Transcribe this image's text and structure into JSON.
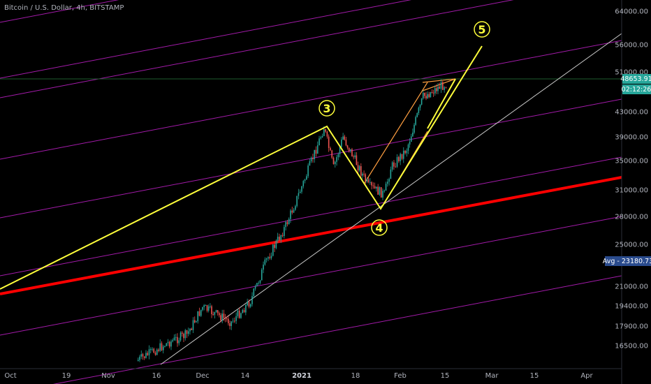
{
  "chart_data": {
    "type": "candlestick",
    "title": "Bitcoin / U.S. Dollar, 4h, BITSTAMP",
    "y_ticks": [
      "64000.00",
      "56000.00",
      "51000.00",
      "43000.00",
      "39000.00",
      "35000.00",
      "31000.00",
      "28000.00",
      "25000.00",
      "21000.00",
      "19400.00",
      "17900.00",
      "16500.00"
    ],
    "x_ticks": [
      {
        "label": "Oct",
        "bold": false
      },
      {
        "label": "19",
        "bold": false
      },
      {
        "label": "Nov",
        "bold": false
      },
      {
        "label": "16",
        "bold": false
      },
      {
        "label": "Dec",
        "bold": false
      },
      {
        "label": "14",
        "bold": false
      },
      {
        "label": "2021",
        "bold": true
      },
      {
        "label": "18",
        "bold": false
      },
      {
        "label": "Feb",
        "bold": false
      },
      {
        "label": "15",
        "bold": false
      },
      {
        "label": "Mar",
        "bold": false
      },
      {
        "label": "15",
        "bold": false
      },
      {
        "label": "Apr",
        "bold": false
      }
    ],
    "price_label": {
      "value": "48653.91",
      "countdown": "02:12:26",
      "color": "#26a69a"
    },
    "avg_label": {
      "text": "Avg - 23180.73",
      "color": "#2a4b8d"
    },
    "price_path": [
      {
        "date": "2020-11-10",
        "price": 15400
      },
      {
        "date": "2020-11-20",
        "price": 16700
      },
      {
        "date": "2020-11-26",
        "price": 17300
      },
      {
        "date": "2020-12-01",
        "price": 19300
      },
      {
        "date": "2020-12-10",
        "price": 18200
      },
      {
        "date": "2020-12-16",
        "price": 19800
      },
      {
        "date": "2020-12-21",
        "price": 23500
      },
      {
        "date": "2020-12-27",
        "price": 27000
      },
      {
        "date": "2021-01-02",
        "price": 32500
      },
      {
        "date": "2021-01-08",
        "price": 40500
      },
      {
        "date": "2021-01-11",
        "price": 34000
      },
      {
        "date": "2021-01-14",
        "price": 39000
      },
      {
        "date": "2021-01-22",
        "price": 31500
      },
      {
        "date": "2021-01-27",
        "price": 30500
      },
      {
        "date": "2021-01-29",
        "price": 34000
      },
      {
        "date": "2021-02-03",
        "price": 37000
      },
      {
        "date": "2021-02-08",
        "price": 46000
      },
      {
        "date": "2021-02-13",
        "price": 48000
      },
      {
        "date": "2021-02-15",
        "price": 48653
      }
    ],
    "wave_labels": [
      "3",
      "4",
      "5"
    ],
    "colors": {
      "background": "#000000",
      "wave_line": "#ffff3b",
      "support_line": "#ff0000",
      "channel_lines": "#c020c8",
      "trend_line": "#c8c8c8",
      "price_line": "#1e5c2e",
      "up_candle": "#26a69a",
      "down_candle": "#ef5350",
      "inner_channel": "#ff9f40",
      "axis_text": "#b2b5be"
    }
  }
}
